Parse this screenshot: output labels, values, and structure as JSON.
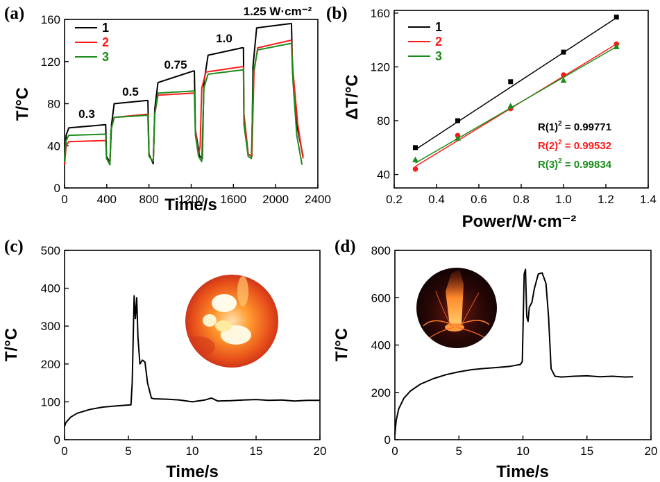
{
  "colors": {
    "s1": "#000000",
    "s2": "#ff1a1a",
    "s3": "#1a8c1a"
  },
  "chart_data": [
    {
      "panel": "(a)",
      "type": "line",
      "xlabel": "Time/s",
      "ylabel": "T/°C",
      "xlim": [
        0,
        2400
      ],
      "ylim": [
        0,
        160
      ],
      "xticks": [
        "0",
        "400",
        "800",
        "1200",
        "1600",
        "2000",
        "2400"
      ],
      "yticks": [
        "0",
        "40",
        "80",
        "120",
        "160"
      ],
      "annotations": [
        "0.3",
        "0.5",
        "0.75",
        "1.0",
        "1.25 W·cm⁻²"
      ],
      "annotation_values": [
        0.3,
        0.5,
        0.75,
        1.0,
        1.25
      ],
      "legend": [
        "1",
        "2",
        "3"
      ],
      "legend_position": "top-left",
      "series": [
        {
          "name": "1",
          "color": "#000000",
          "values": [
            [
              0,
              22
            ],
            [
              15,
              50
            ],
            [
              40,
              57
            ],
            [
              380,
              60
            ],
            [
              390,
              60
            ],
            [
              398,
              30
            ],
            [
              430,
              24
            ],
            [
              445,
              60
            ],
            [
              470,
              80
            ],
            [
              780,
              83
            ],
            [
              790,
              83
            ],
            [
              800,
              32
            ],
            [
              840,
              23
            ],
            [
              855,
              75
            ],
            [
              885,
              100
            ],
            [
              1220,
              111
            ],
            [
              1230,
              111
            ],
            [
              1240,
              55
            ],
            [
              1280,
              30
            ],
            [
              1305,
              28
            ],
            [
              1320,
              100
            ],
            [
              1360,
              126
            ],
            [
              1680,
              133
            ],
            [
              1695,
              133
            ],
            [
              1700,
              70
            ],
            [
              1740,
              32
            ],
            [
              1775,
              30
            ],
            [
              1785,
              115
            ],
            [
              1820,
              152
            ],
            [
              2135,
              156
            ],
            [
              2150,
              156
            ],
            [
              2160,
              110
            ],
            [
              2200,
              60
            ],
            [
              2260,
              30
            ]
          ]
        },
        {
          "name": "2",
          "color": "#ff1a1a",
          "values": [
            [
              0,
              22
            ],
            [
              15,
              40
            ],
            [
              40,
              44
            ],
            [
              380,
              45
            ],
            [
              390,
              45
            ],
            [
              398,
              28
            ],
            [
              430,
              23
            ],
            [
              440,
              55
            ],
            [
              470,
              67
            ],
            [
              780,
              70
            ],
            [
              790,
              70
            ],
            [
              800,
              30
            ],
            [
              840,
              25
            ],
            [
              855,
              70
            ],
            [
              885,
              88
            ],
            [
              1220,
              90
            ],
            [
              1230,
              90
            ],
            [
              1240,
              55
            ],
            [
              1270,
              30
            ],
            [
              1285,
              40
            ],
            [
              1300,
              95
            ],
            [
              1340,
              110
            ],
            [
              1680,
              115
            ],
            [
              1695,
              115
            ],
            [
              1700,
              70
            ],
            [
              1740,
              32
            ],
            [
              1775,
              30
            ],
            [
              1795,
              110
            ],
            [
              1830,
              133
            ],
            [
              2135,
              140
            ],
            [
              2150,
              140
            ],
            [
              2165,
              110
            ],
            [
              2210,
              60
            ],
            [
              2260,
              28
            ]
          ]
        },
        {
          "name": "3",
          "color": "#1a8c1a",
          "values": [
            [
              0,
              25
            ],
            [
              15,
              45
            ],
            [
              40,
              50
            ],
            [
              380,
              51
            ],
            [
              390,
              51
            ],
            [
              398,
              28
            ],
            [
              430,
              22
            ],
            [
              440,
              55
            ],
            [
              470,
              67
            ],
            [
              780,
              69
            ],
            [
              790,
              69
            ],
            [
              800,
              30
            ],
            [
              840,
              25
            ],
            [
              855,
              70
            ],
            [
              885,
              90
            ],
            [
              1220,
              92
            ],
            [
              1230,
              92
            ],
            [
              1240,
              50
            ],
            [
              1270,
              30
            ],
            [
              1300,
              25
            ],
            [
              1320,
              95
            ],
            [
              1360,
              108
            ],
            [
              1680,
              112
            ],
            [
              1695,
              112
            ],
            [
              1700,
              60
            ],
            [
              1740,
              30
            ],
            [
              1770,
              28
            ],
            [
              1790,
              110
            ],
            [
              1830,
              131
            ],
            [
              2135,
              137
            ],
            [
              2150,
              137
            ],
            [
              2165,
              100
            ],
            [
              2200,
              50
            ],
            [
              2250,
              22
            ]
          ]
        }
      ]
    },
    {
      "panel": "(b)",
      "type": "scatter",
      "xlabel": "Power/W·cm⁻²",
      "ylabel": "ΔT/°C",
      "xlim": [
        0.2,
        1.4
      ],
      "ylim": [
        30,
        162
      ],
      "xticks": [
        "0.2",
        "0.4",
        "0.6",
        "0.8",
        "1.0",
        "1.2",
        "1.4"
      ],
      "yticks": [
        "40",
        "80",
        "120",
        "160"
      ],
      "x": [
        0.3,
        0.5,
        0.75,
        1.0,
        1.25
      ],
      "legend": [
        "1",
        "2",
        "3"
      ],
      "legend_position": "top-left",
      "fits": [
        {
          "label": "R(1)",
          "value": " = 0.99771",
          "color": "#000000"
        },
        {
          "label": "R(2)",
          "value": " = 0.99532",
          "color": "#ff1a1a"
        },
        {
          "label": "R(3)",
          "value": " = 0.99834",
          "color": "#1a8c1a"
        }
      ],
      "fit_exponent": "2",
      "series": [
        {
          "name": "1",
          "color": "#000000",
          "marker": "square",
          "values": [
            60,
            80,
            109,
            131,
            157
          ],
          "fit": [
            58.5,
            156.5
          ]
        },
        {
          "name": "2",
          "color": "#ff1a1a",
          "marker": "circle",
          "values": [
            44,
            69,
            89,
            114,
            137
          ],
          "fit": [
            46,
            137
          ]
        },
        {
          "name": "3",
          "color": "#1a8c1a",
          "marker": "triangle",
          "values": [
            51,
            67,
            91,
            110,
            135
          ],
          "fit": [
            48.5,
            135
          ]
        }
      ]
    },
    {
      "panel": "(c)",
      "type": "line",
      "xlabel": "Time/s",
      "ylabel": "T/°C",
      "xlim": [
        0,
        20
      ],
      "ylim": [
        0,
        500
      ],
      "xticks": [
        "0",
        "5",
        "10",
        "15",
        "20"
      ],
      "yticks": [
        "0",
        "100",
        "200",
        "300",
        "400",
        "500"
      ],
      "series": [
        {
          "name": "",
          "color": "#000000",
          "values": [
            [
              0,
              35
            ],
            [
              0.1,
              45
            ],
            [
              0.5,
              60
            ],
            [
              1,
              70
            ],
            [
              2,
              80
            ],
            [
              3,
              86
            ],
            [
              4,
              89
            ],
            [
              5.2,
              92
            ],
            [
              5.3,
              150
            ],
            [
              5.45,
              380
            ],
            [
              5.55,
              320
            ],
            [
              5.65,
              375
            ],
            [
              5.75,
              270
            ],
            [
              5.9,
              200
            ],
            [
              6.1,
              210
            ],
            [
              6.3,
              205
            ],
            [
              6.5,
              150
            ],
            [
              6.8,
              110
            ],
            [
              7,
              108
            ],
            [
              8,
              107
            ],
            [
              9,
              105
            ],
            [
              10,
              100
            ],
            [
              11,
              105
            ],
            [
              11.5,
              110
            ],
            [
              12,
              102
            ],
            [
              13,
              103
            ],
            [
              14,
              105
            ],
            [
              15,
              106
            ],
            [
              16,
              104
            ],
            [
              17,
              105
            ],
            [
              18,
              102
            ],
            [
              19,
              104
            ],
            [
              20,
              104
            ]
          ]
        }
      ]
    },
    {
      "panel": "(d)",
      "type": "line",
      "xlabel": "Time/s",
      "ylabel": "T/°C",
      "xlim": [
        0,
        20
      ],
      "ylim": [
        0,
        800
      ],
      "xticks": [
        "0",
        "5",
        "10",
        "15",
        "20"
      ],
      "yticks": [
        "0",
        "200",
        "400",
        "600",
        "800"
      ],
      "series": [
        {
          "name": "",
          "color": "#000000",
          "values": [
            [
              0,
              20
            ],
            [
              0.1,
              80
            ],
            [
              0.3,
              130
            ],
            [
              0.7,
              175
            ],
            [
              1.2,
              205
            ],
            [
              2,
              235
            ],
            [
              3,
              258
            ],
            [
              4,
              275
            ],
            [
              5,
              287
            ],
            [
              6,
              296
            ],
            [
              7,
              301
            ],
            [
              8,
              305
            ],
            [
              9,
              310
            ],
            [
              9.8,
              318
            ],
            [
              9.95,
              330
            ],
            [
              10.1,
              700
            ],
            [
              10.2,
              720
            ],
            [
              10.3,
              520
            ],
            [
              10.4,
              500
            ],
            [
              10.5,
              560
            ],
            [
              10.7,
              580
            ],
            [
              10.9,
              640
            ],
            [
              11.2,
              700
            ],
            [
              11.5,
              705
            ],
            [
              11.8,
              660
            ],
            [
              12,
              520
            ],
            [
              12.2,
              300
            ],
            [
              12.5,
              268
            ],
            [
              13,
              265
            ],
            [
              14,
              268
            ],
            [
              15,
              270
            ],
            [
              16,
              266
            ],
            [
              17,
              268
            ],
            [
              18,
              265
            ],
            [
              18.6,
              266
            ]
          ]
        }
      ]
    }
  ]
}
